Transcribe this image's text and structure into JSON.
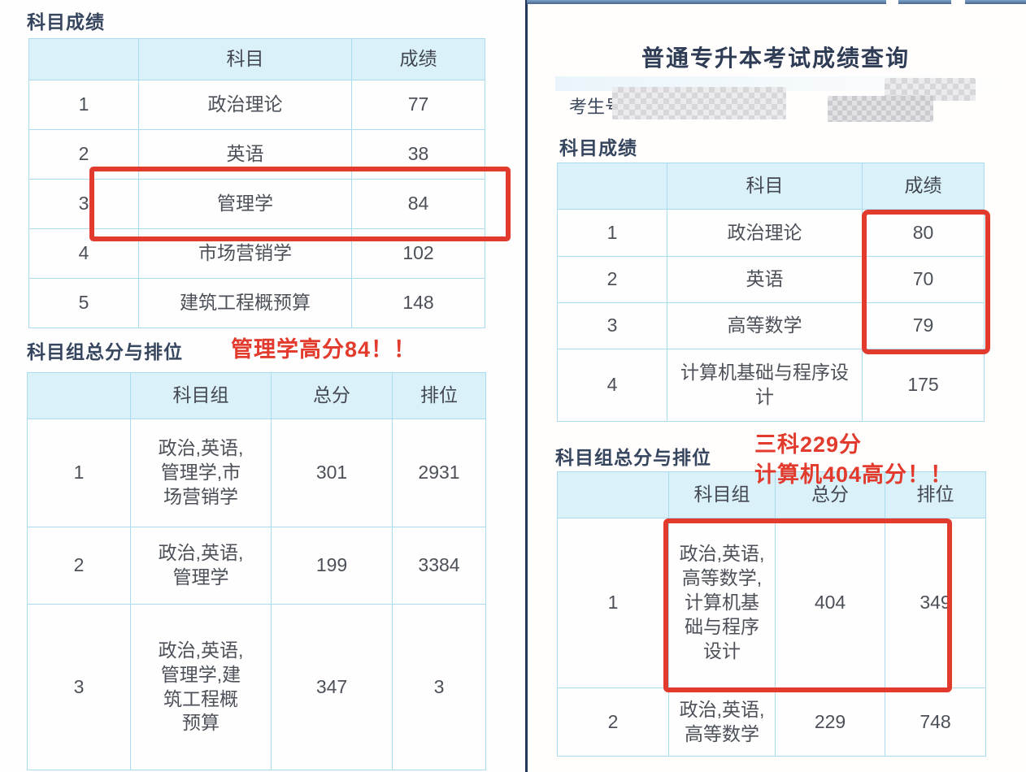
{
  "colors": {
    "accent_red": "#e23a2c",
    "table_border": "#a8dcee",
    "table_header_bg": "#daf1fa",
    "section_title": "#37465f",
    "card_border_blue": "#48648b"
  },
  "left_panel": {
    "subject_scores": {
      "title": "科目成绩",
      "headers": [
        "",
        "科目",
        "成绩"
      ],
      "rows": [
        [
          "1",
          "政治理论",
          "77"
        ],
        [
          "2",
          "英语",
          "38"
        ],
        [
          "3",
          "管理学",
          "84"
        ],
        [
          "4",
          "市场营销学",
          "102"
        ],
        [
          "5",
          "建筑工程概预算",
          "148"
        ]
      ]
    },
    "group_scores": {
      "title": "科目组总分与排位",
      "annotation": "管理学高分84！！",
      "headers": [
        "",
        "科目组",
        "总分",
        "排位"
      ],
      "rows": [
        [
          "1",
          "政治,英语,\n管理学,市\n场营销学",
          "301",
          "2931"
        ],
        [
          "2",
          "政治,英语,\n管理学",
          "199",
          "3384"
        ],
        [
          "3",
          "政治,英语,\n管理学,建\n筑工程概\n预算",
          "347",
          "3"
        ]
      ]
    }
  },
  "right_panel": {
    "page_title": "普通专升本考试成绩查询",
    "candidate_label": "考生号:",
    "subject_scores": {
      "title": "科目成绩",
      "headers": [
        "",
        "科目",
        "成绩"
      ],
      "rows": [
        [
          "1",
          "政治理论",
          "80"
        ],
        [
          "2",
          "英语",
          "70"
        ],
        [
          "3",
          "高等数学",
          "79"
        ],
        [
          "4",
          "计算机基础与程序设\n计",
          "175"
        ]
      ]
    },
    "group_scores": {
      "title": "科目组总分与排位",
      "annotation_line1": "三科229分",
      "annotation_line2": "计算机404高分！！",
      "headers": [
        "",
        "科目组",
        "总分",
        "排位"
      ],
      "rows": [
        [
          "1",
          "政治,英语,\n高等数学,\n计算机基\n础与程序\n设计",
          "404",
          "349"
        ],
        [
          "2",
          "政治,英语,\n高等数学",
          "229",
          "748"
        ]
      ]
    }
  }
}
